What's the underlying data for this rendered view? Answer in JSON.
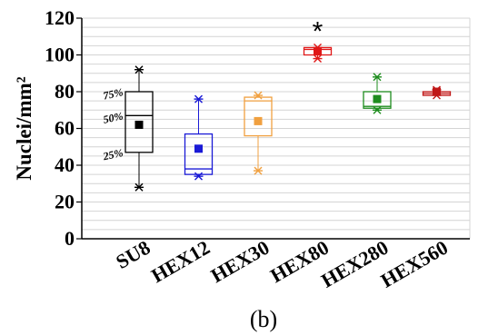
{
  "chart_data": {
    "type": "box",
    "ylabel": "Nuclei/mm²",
    "ylim": [
      0,
      120
    ],
    "yticks": [
      0,
      20,
      40,
      60,
      80,
      100,
      120
    ],
    "grid_minor_step": 5,
    "categories": [
      "SU8",
      "HEX12",
      "HEX30",
      "HEX80",
      "HEX280",
      "HEX560"
    ],
    "boxes": [
      {
        "category": "SU8",
        "color": "#000000",
        "min": 28,
        "q1": 47,
        "median": 67,
        "q3": 80,
        "max": 92,
        "mean": 62
      },
      {
        "category": "HEX12",
        "color": "#1a1ad6",
        "min": 34,
        "q1": 35,
        "median": 38,
        "q3": 57,
        "max": 76,
        "mean": 49
      },
      {
        "category": "HEX30",
        "color": "#f0a040",
        "min": 37,
        "q1": 56,
        "median": 75,
        "q3": 77,
        "max": 78,
        "mean": 64
      },
      {
        "category": "HEX80",
        "color": "#e01818",
        "min": 98,
        "q1": 100,
        "median": 103,
        "q3": 104,
        "max": 104,
        "mean": 102
      },
      {
        "category": "HEX280",
        "color": "#1e8c1e",
        "min": 70,
        "q1": 71,
        "median": 72,
        "q3": 80,
        "max": 88,
        "mean": 76
      },
      {
        "category": "HEX560",
        "color": "#c01818",
        "min": 78,
        "q1": 78,
        "median": 79,
        "q3": 80,
        "max": 81,
        "mean": 80
      }
    ],
    "percentile_labels": [
      "75%",
      "50%",
      "25%"
    ],
    "significance_marker": {
      "category": "HEX80",
      "text": "*"
    },
    "panel_label": "(b)"
  }
}
